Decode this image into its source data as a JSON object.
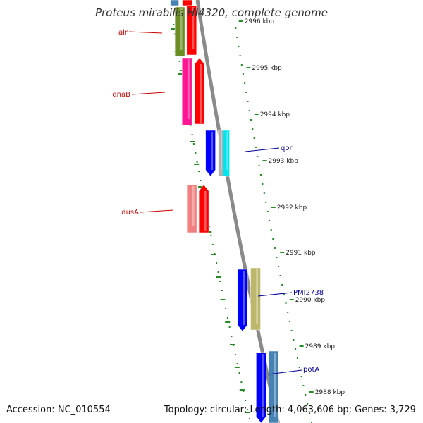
{
  "title": "Proteus mirabilis HI4320, complete genome",
  "footer": {
    "accession": "Accession: NC_010554",
    "summary": "Topology: circular; Length: 4,063,606 bp; Genes: 3,729"
  },
  "ticks": [
    {
      "label": "2996 kbp",
      "kbp": 2996
    },
    {
      "label": "2995 kbp",
      "kbp": 2995
    },
    {
      "label": "2994 kbp",
      "kbp": 2994
    },
    {
      "label": "2993 kbp",
      "kbp": 2993
    },
    {
      "label": "2992 kbp",
      "kbp": 2992
    },
    {
      "label": "2991 kbp",
      "kbp": 2991
    },
    {
      "label": "2990 kbp",
      "kbp": 2990
    },
    {
      "label": "2989 kbp",
      "kbp": 2989
    },
    {
      "label": "2988 kbp",
      "kbp": 2988
    }
  ],
  "gene_labels": [
    {
      "name": "alr",
      "color": "#cc0000"
    },
    {
      "name": "dnaB",
      "color": "#cc0000"
    },
    {
      "name": "dusA",
      "color": "#cc0000"
    },
    {
      "name": "qor",
      "color": "#000099"
    },
    {
      "name": "PMI2738",
      "color": "#000099"
    },
    {
      "name": "potA",
      "color": "#000099"
    }
  ],
  "colors": {
    "backbone": "#8a8a8a",
    "ruler_dots": "#228b22",
    "red": "#ff0000",
    "olive": "#6b8e23",
    "magenta": "#ff1493",
    "pink": "#f08080",
    "blue": "#0000ff",
    "grey": "#b0b0b0",
    "cyan": "#00e5ee",
    "khaki": "#bdb76b",
    "steel": "#4682b4"
  }
}
